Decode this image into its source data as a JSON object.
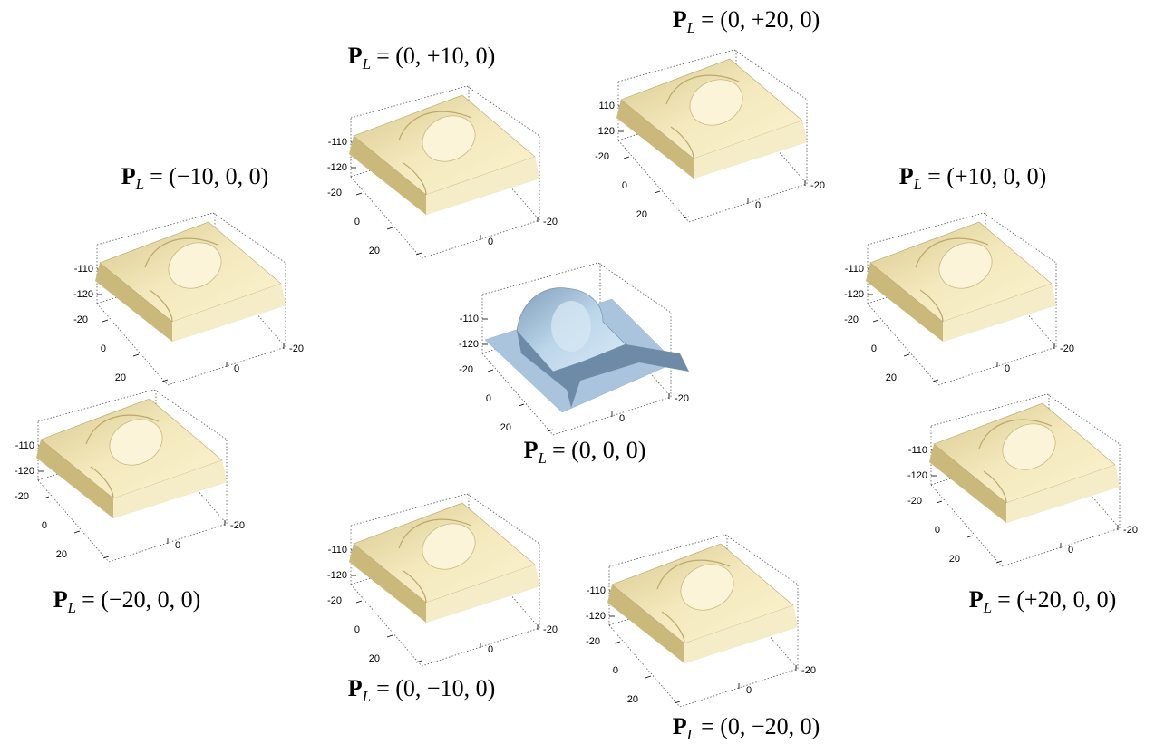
{
  "panels": [
    {
      "symbol": "P",
      "subscript": "L",
      "coords": "= (0, +10, 0)",
      "zticks": [
        "-110",
        "-120"
      ],
      "yticks": [
        "-20",
        "0",
        "20"
      ],
      "xticks": [
        "0",
        "-20"
      ]
    },
    {
      "symbol": "P",
      "subscript": "L",
      "coords": "= (0, +20, 0)",
      "zticks": [
        "110",
        "120"
      ],
      "yticks": [
        "-20",
        "0",
        "20"
      ],
      "xticks": [
        "0",
        "-20"
      ]
    },
    {
      "symbol": "P",
      "subscript": "L",
      "coords": "= (−10, 0, 0)",
      "zticks": [
        "-110",
        "-120"
      ],
      "yticks": [
        "-20",
        "0",
        "20"
      ],
      "xticks": [
        "0",
        "-20"
      ]
    },
    {
      "symbol": "P",
      "subscript": "L",
      "coords": "= (+10, 0, 0)",
      "zticks": [
        "-110",
        "-120"
      ],
      "yticks": [
        "-20",
        "0",
        "20"
      ],
      "xticks": [
        "0",
        "-20"
      ]
    },
    {
      "symbol": "P",
      "subscript": "L",
      "coords": "= (0, 0, 0)",
      "zticks": [
        "-110",
        "-120"
      ],
      "yticks": [
        "-20",
        "0",
        "20"
      ],
      "xticks": [
        "0",
        "-20"
      ]
    },
    {
      "symbol": "P",
      "subscript": "L",
      "coords": "= (−20, 0, 0)",
      "zticks": [
        "-110",
        "-120"
      ],
      "yticks": [
        "-20",
        "0",
        "20"
      ],
      "xticks": [
        "0",
        "-20"
      ]
    },
    {
      "symbol": "P",
      "subscript": "L",
      "coords": "= (+20, 0, 0)",
      "zticks": [
        "-110",
        "-120"
      ],
      "yticks": [
        "-20",
        "0",
        "20"
      ],
      "xticks": [
        "0",
        "-20"
      ]
    },
    {
      "symbol": "P",
      "subscript": "L",
      "coords": "= (0, −10, 0)",
      "zticks": [
        "-110",
        "-120"
      ],
      "yticks": [
        "-20",
        "0",
        "20"
      ],
      "xticks": [
        "0",
        "-20"
      ]
    },
    {
      "symbol": "P",
      "subscript": "L",
      "coords": "= (0, −20, 0)",
      "zticks": [
        "-110",
        "-120"
      ],
      "yticks": [
        "-20",
        "0",
        "20"
      ],
      "xticks": [
        "0",
        "-20"
      ]
    }
  ]
}
